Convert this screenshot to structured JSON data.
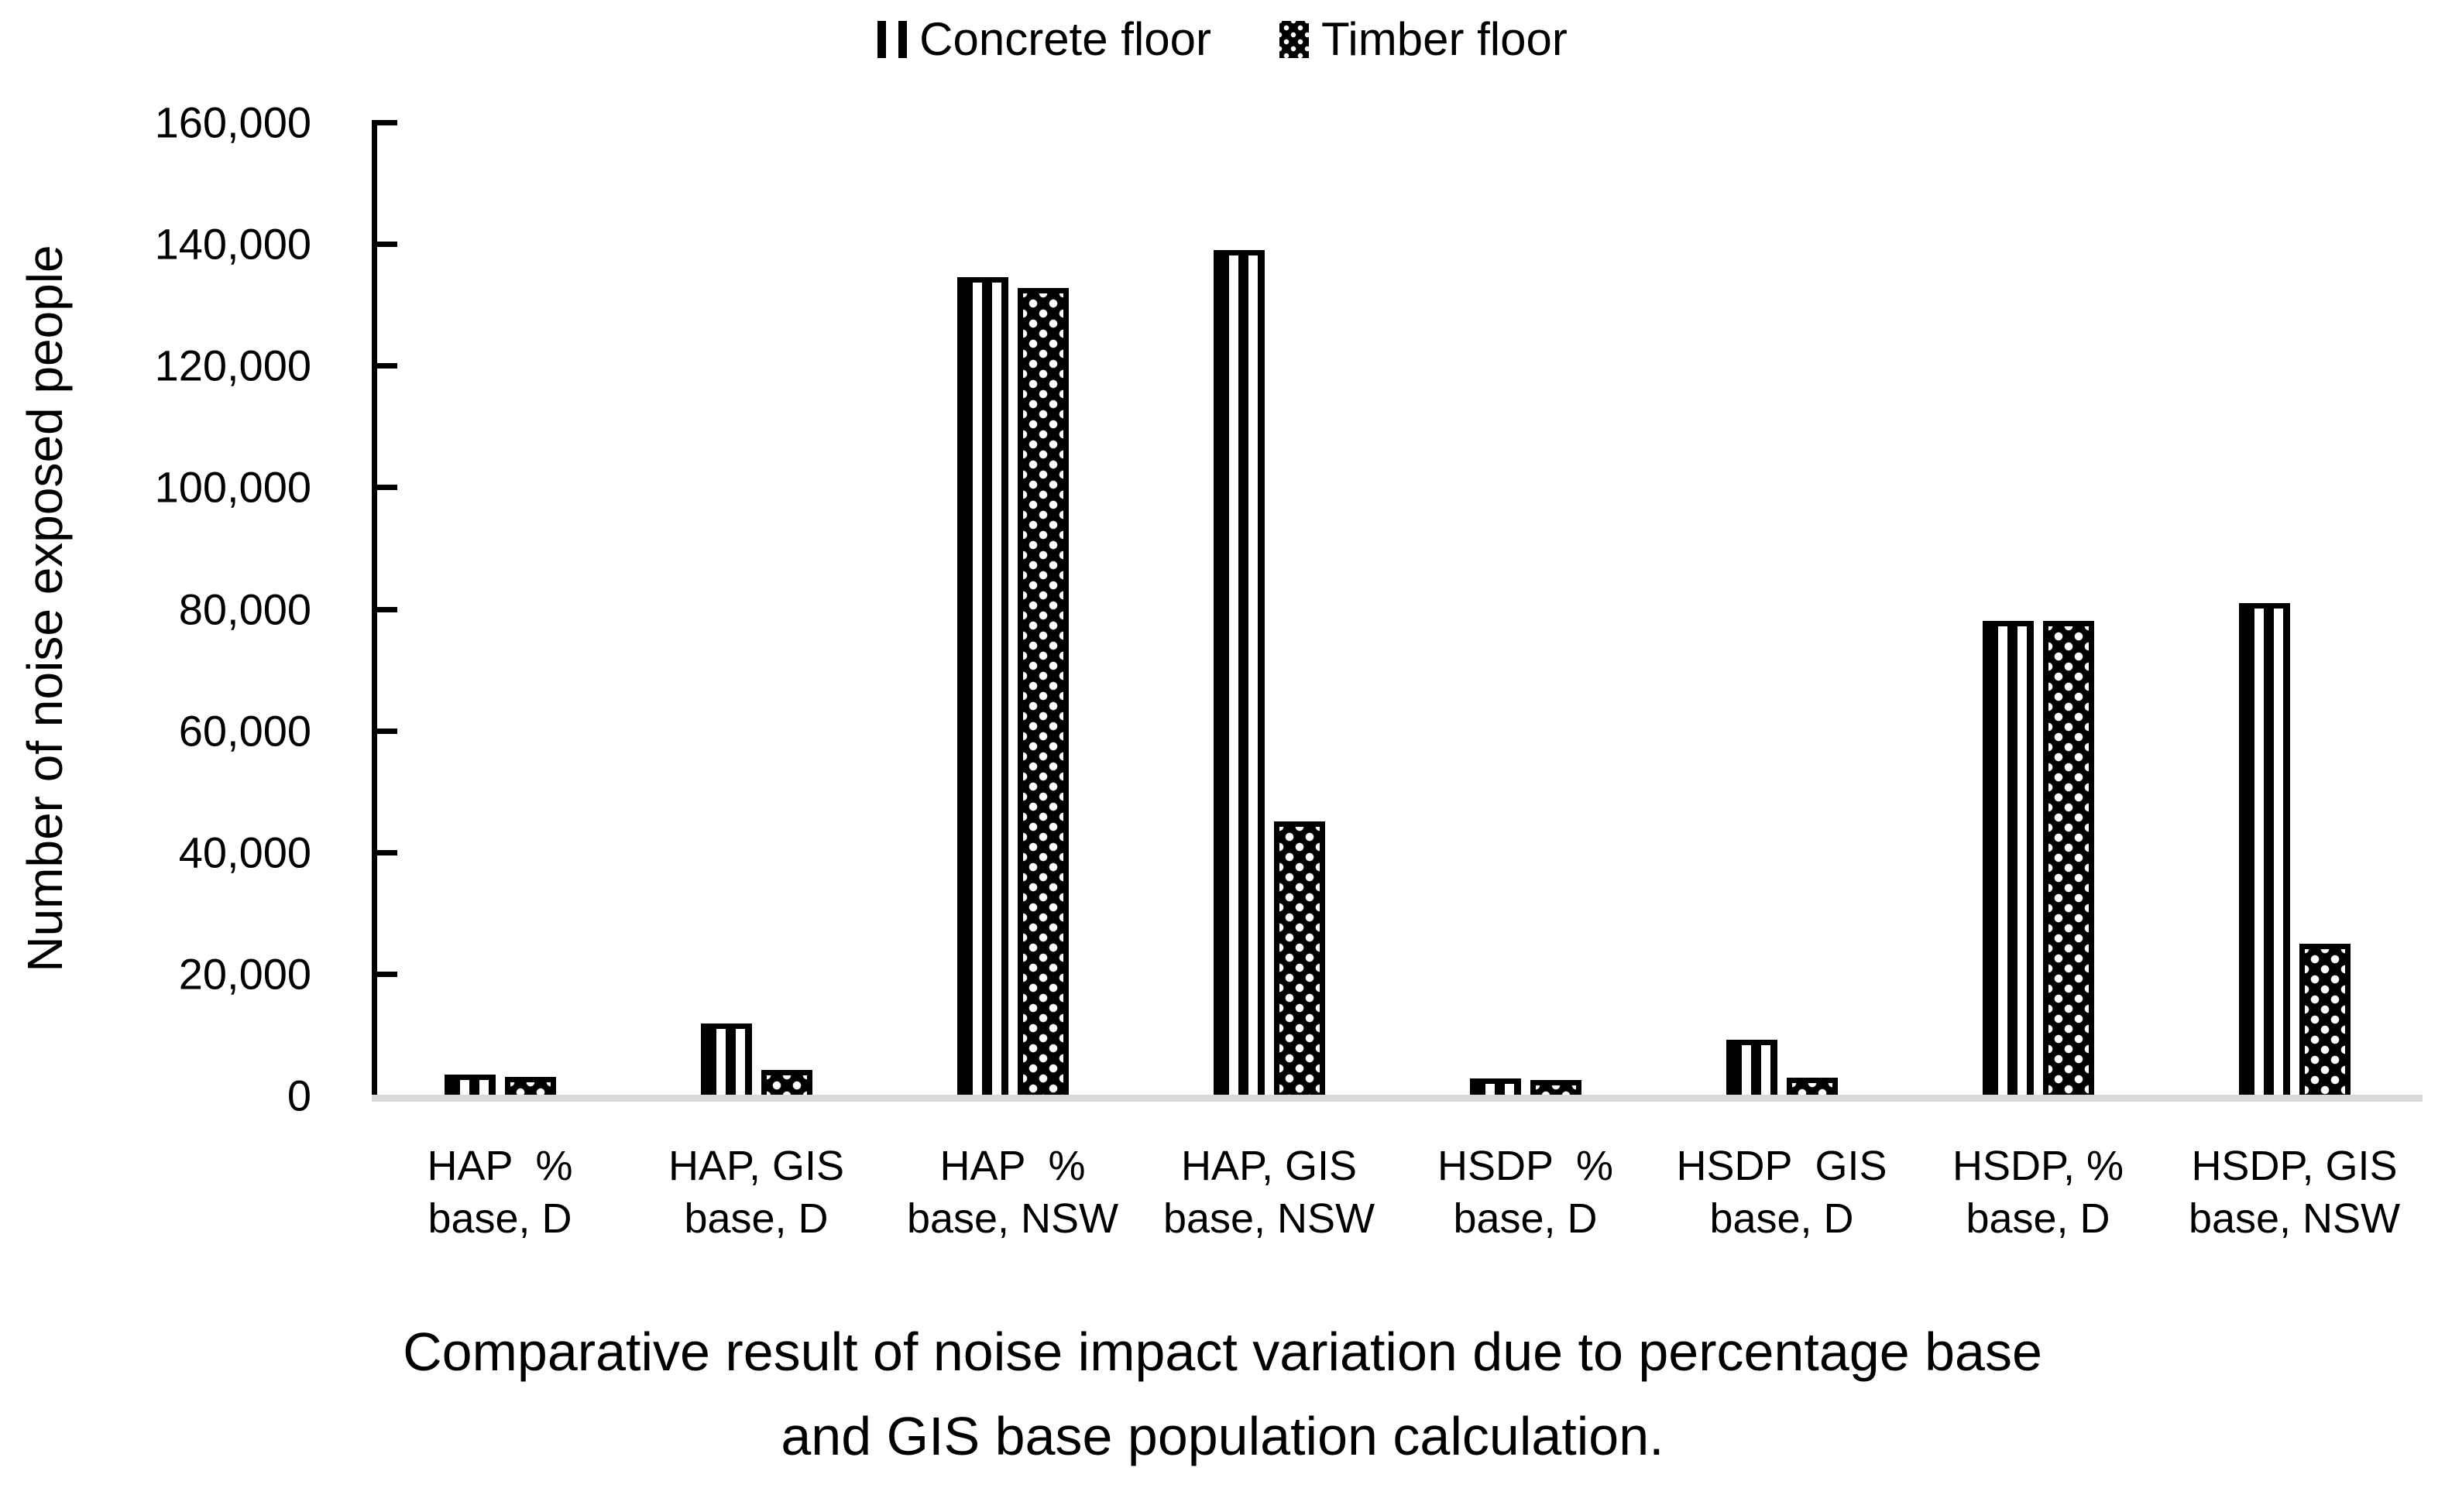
{
  "colors": {
    "foreground": "#000000",
    "background": "#ffffff",
    "baseline_gray": "#d9d9d9"
  },
  "legend": [
    {
      "label": "Concrete floor",
      "swatch": "vertical-stripes-swatch-icon"
    },
    {
      "label": "Timber floor",
      "swatch": "dots-swatch-icon"
    }
  ],
  "chart_data": {
    "type": "bar",
    "title": "Comparative result of noise impact variation due to percentage base and GIS base population calculation.",
    "title_line1": "Comparative result of noise impact variation due to percentage base",
    "title_line2": "and GIS base population calculation.",
    "xlabel": "",
    "ylabel": "Number of noise exposed people",
    "ylim": [
      0,
      160000
    ],
    "ytick_interval": 20000,
    "ytick_labels": [
      "160,000",
      "140,000",
      "120,000",
      "100,000",
      "80,000",
      "60,000",
      "40,000",
      "20,000",
      "0"
    ],
    "grid": false,
    "legend_position": "top-center",
    "bar_patterns": {
      "Concrete floor": "vertical-stripes",
      "Timber floor": "dots"
    },
    "categories": [
      "HAP % base, D",
      "HAP, GIS base, D",
      "HAP % base, NSW",
      "HAP, GIS base, NSW",
      "HSDP % base, D",
      "HSDP GIS base, D",
      "HSDP, % base, D",
      "HSDP, GIS base, NSW"
    ],
    "categories_lines": [
      [
        "HAP  %",
        "base, D"
      ],
      [
        "HAP, GIS",
        "base, D"
      ],
      [
        "HAP  %",
        "base, NSW"
      ],
      [
        "HAP, GIS",
        "base, NSW"
      ],
      [
        "HSDP  %",
        "base, D"
      ],
      [
        "HSDP  GIS",
        "base, D"
      ],
      [
        "HSDP, %",
        "base, D"
      ],
      [
        "HSDP, GIS",
        "base, NSW"
      ]
    ],
    "series": [
      {
        "name": "Concrete floor",
        "values": [
          3500,
          11800,
          134500,
          139000,
          2800,
          9200,
          78000,
          81000
        ]
      },
      {
        "name": "Timber floor",
        "values": [
          3000,
          4200,
          132700,
          45000,
          2600,
          2900,
          78000,
          25000
        ]
      }
    ]
  }
}
